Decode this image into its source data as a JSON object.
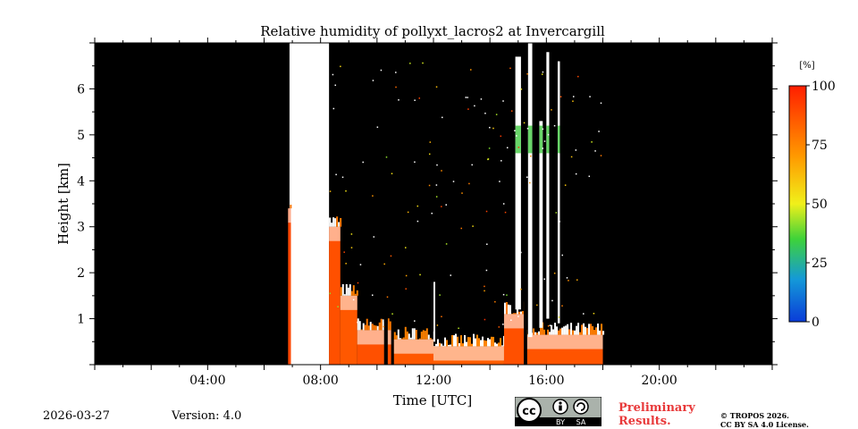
{
  "chart_data": {
    "type": "heatmap",
    "title": "Relative humidity of pollyxt_lacros2 at Invercargill",
    "xlabel": "Time [UTC]",
    "ylabel": "Height [km]",
    "xlim": [
      0,
      24
    ],
    "ylim": [
      0,
      7
    ],
    "x_ticks": [
      {
        "value": 4,
        "label": "04:00"
      },
      {
        "value": 8,
        "label": "08:00"
      },
      {
        "value": 12,
        "label": "12:00"
      },
      {
        "value": 16,
        "label": "16:00"
      },
      {
        "value": 20,
        "label": "20:00"
      }
    ],
    "y_ticks": [
      {
        "value": 1,
        "label": "1"
      },
      {
        "value": 2,
        "label": "2"
      },
      {
        "value": 3,
        "label": "3"
      },
      {
        "value": 4,
        "label": "4"
      },
      {
        "value": 5,
        "label": "5"
      },
      {
        "value": 6,
        "label": "6"
      }
    ],
    "colorbar": {
      "unit_label": "[%]",
      "range": [
        0,
        100
      ],
      "ticks": [
        {
          "value": 0,
          "label": "0"
        },
        {
          "value": 25,
          "label": "25"
        },
        {
          "value": 50,
          "label": "50"
        },
        {
          "value": 75,
          "label": "75"
        },
        {
          "value": 100,
          "label": "100"
        }
      ]
    },
    "background_color": "#000000",
    "no_data_gap": {
      "start": 6.9,
      "end": 8.3,
      "color": "#ffffff"
    },
    "humidity_regions": [
      {
        "start": 6.85,
        "end": 6.95,
        "top_km": 3.4,
        "rh": 90
      },
      {
        "start": 8.3,
        "end": 8.7,
        "top_km": 3.0,
        "rh": 88
      },
      {
        "start": 8.7,
        "end": 9.3,
        "top_km": 1.5,
        "rh": 86
      },
      {
        "start": 9.3,
        "end": 10.5,
        "top_km": 0.75,
        "rh": 88
      },
      {
        "start": 10.6,
        "end": 12.0,
        "top_km": 0.55,
        "rh": 86
      },
      {
        "start": 12.0,
        "end": 14.5,
        "top_km": 0.4,
        "rh": 85
      },
      {
        "start": 14.5,
        "end": 15.2,
        "top_km": 1.1,
        "rh": 88
      },
      {
        "start": 15.2,
        "end": 18.0,
        "top_km": 0.65,
        "rh": 87
      }
    ],
    "cloud_columns": [
      {
        "x": 14.9,
        "width": 0.2,
        "base_km": 1.2,
        "top_km": 6.7,
        "rh": 100
      },
      {
        "x": 15.35,
        "width": 0.15,
        "base_km": 0.6,
        "top_km": 7.0,
        "rh": 100
      },
      {
        "x": 15.75,
        "width": 0.12,
        "base_km": 0.8,
        "top_km": 5.3,
        "rh": 95
      },
      {
        "x": 16.0,
        "width": 0.1,
        "base_km": 1.0,
        "top_km": 6.8,
        "rh": 100
      },
      {
        "x": 16.4,
        "width": 0.08,
        "base_km": 0.9,
        "top_km": 6.6,
        "rh": 100
      },
      {
        "x": 12.0,
        "width": 0.05,
        "base_km": 0.5,
        "top_km": 1.8,
        "rh": 92
      }
    ],
    "gaps": [
      {
        "start": 10.25,
        "end": 10.38
      },
      {
        "start": 15.2,
        "end": 15.32
      }
    ]
  },
  "footer": {
    "date": "2026-03-27",
    "version": "Version: 4.0",
    "preliminary": [
      "Preliminary",
      "Results."
    ],
    "copyright": [
      "© TROPOS 2026.",
      "CC BY SA 4.0 License."
    ],
    "license_badge": {
      "cc": "cc",
      "by": "BY",
      "sa": "SA"
    }
  }
}
